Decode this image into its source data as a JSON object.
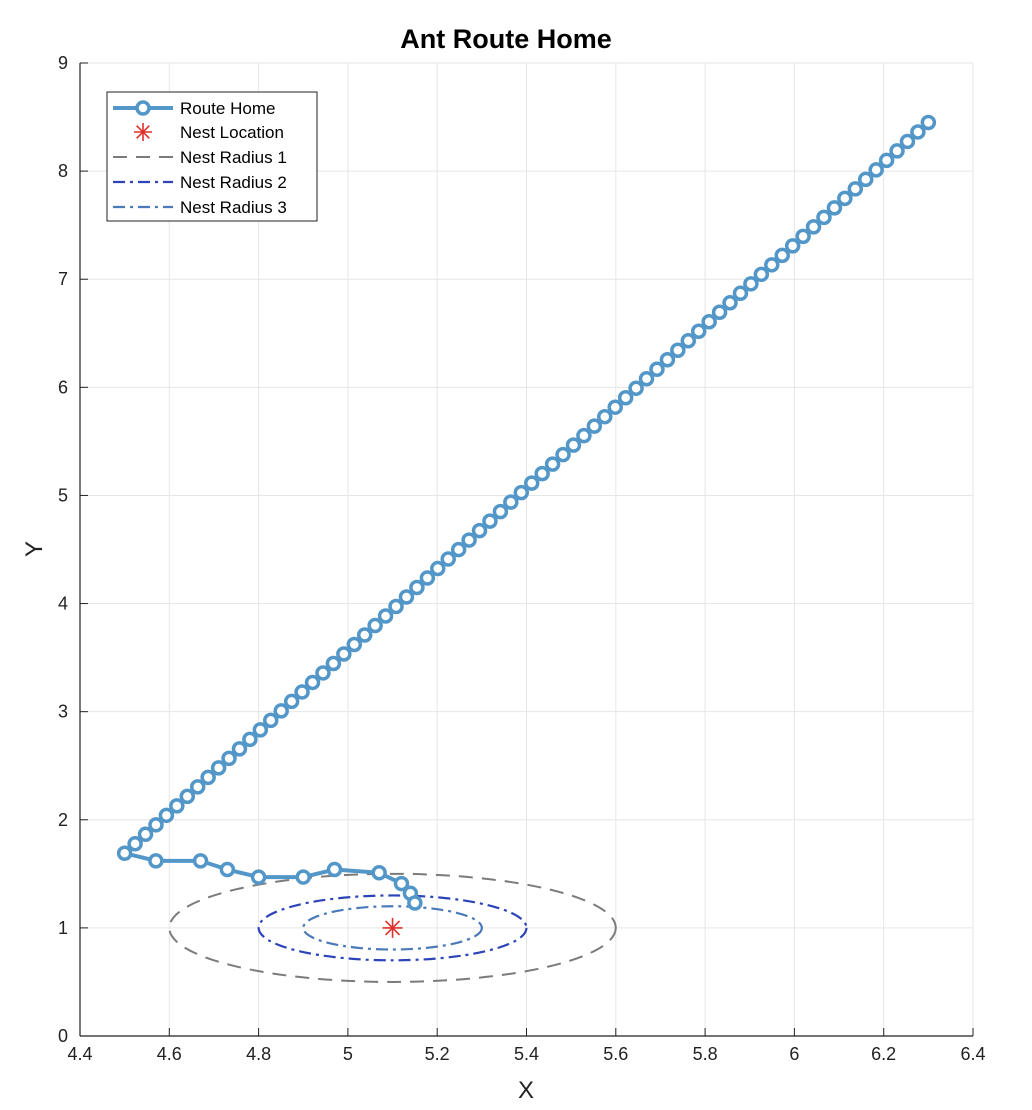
{
  "chart_data": {
    "type": "line",
    "title": "Ant Route Home",
    "xlabel": "X",
    "ylabel": "Y",
    "xlim": [
      4.4,
      6.4
    ],
    "ylim": [
      0,
      9
    ],
    "xticks": [
      "4.4",
      "4.6",
      "4.8",
      "5",
      "5.2",
      "5.4",
      "5.6",
      "5.8",
      "6",
      "6.2",
      "6.4"
    ],
    "yticks": [
      "0",
      "1",
      "2",
      "3",
      "4",
      "5",
      "6",
      "7",
      "8",
      "9"
    ],
    "grid": true,
    "legend_position": "top-left",
    "series": [
      {
        "name": "Route Home",
        "color": "#5397c9",
        "style": "solid-with-circle-markers",
        "line_start": [
          6.3,
          8.45
        ],
        "line_end": [
          4.5,
          1.69
        ],
        "line_points": 78,
        "tail_x": [
          4.5,
          4.57,
          4.67,
          4.73,
          4.8,
          4.9,
          4.97,
          5.07,
          5.12,
          5.14,
          5.15
        ],
        "tail_y": [
          1.69,
          1.62,
          1.62,
          1.54,
          1.47,
          1.47,
          1.54,
          1.51,
          1.41,
          1.32,
          1.23
        ]
      },
      {
        "name": "Nest Location",
        "color": "#e0312a",
        "style": "asterisk-marker",
        "x": [
          5.1
        ],
        "y": [
          1.0
        ]
      },
      {
        "name": "Nest Radius 1",
        "color": "#7b7b7b",
        "style": "dashed",
        "center": [
          5.1,
          1.0
        ],
        "radius_x": 0.5,
        "radius_y": 0.5
      },
      {
        "name": "Nest Radius 2",
        "color": "#2c44b8",
        "style": "dash-dot",
        "center": [
          5.1,
          1.0
        ],
        "radius_x": 0.3,
        "radius_y": 0.3
      },
      {
        "name": "Nest Radius 3",
        "color": "#4a7ab8",
        "style": "dash-dot",
        "center": [
          5.1,
          1.0
        ],
        "radius_x": 0.2,
        "radius_y": 0.2
      }
    ]
  }
}
